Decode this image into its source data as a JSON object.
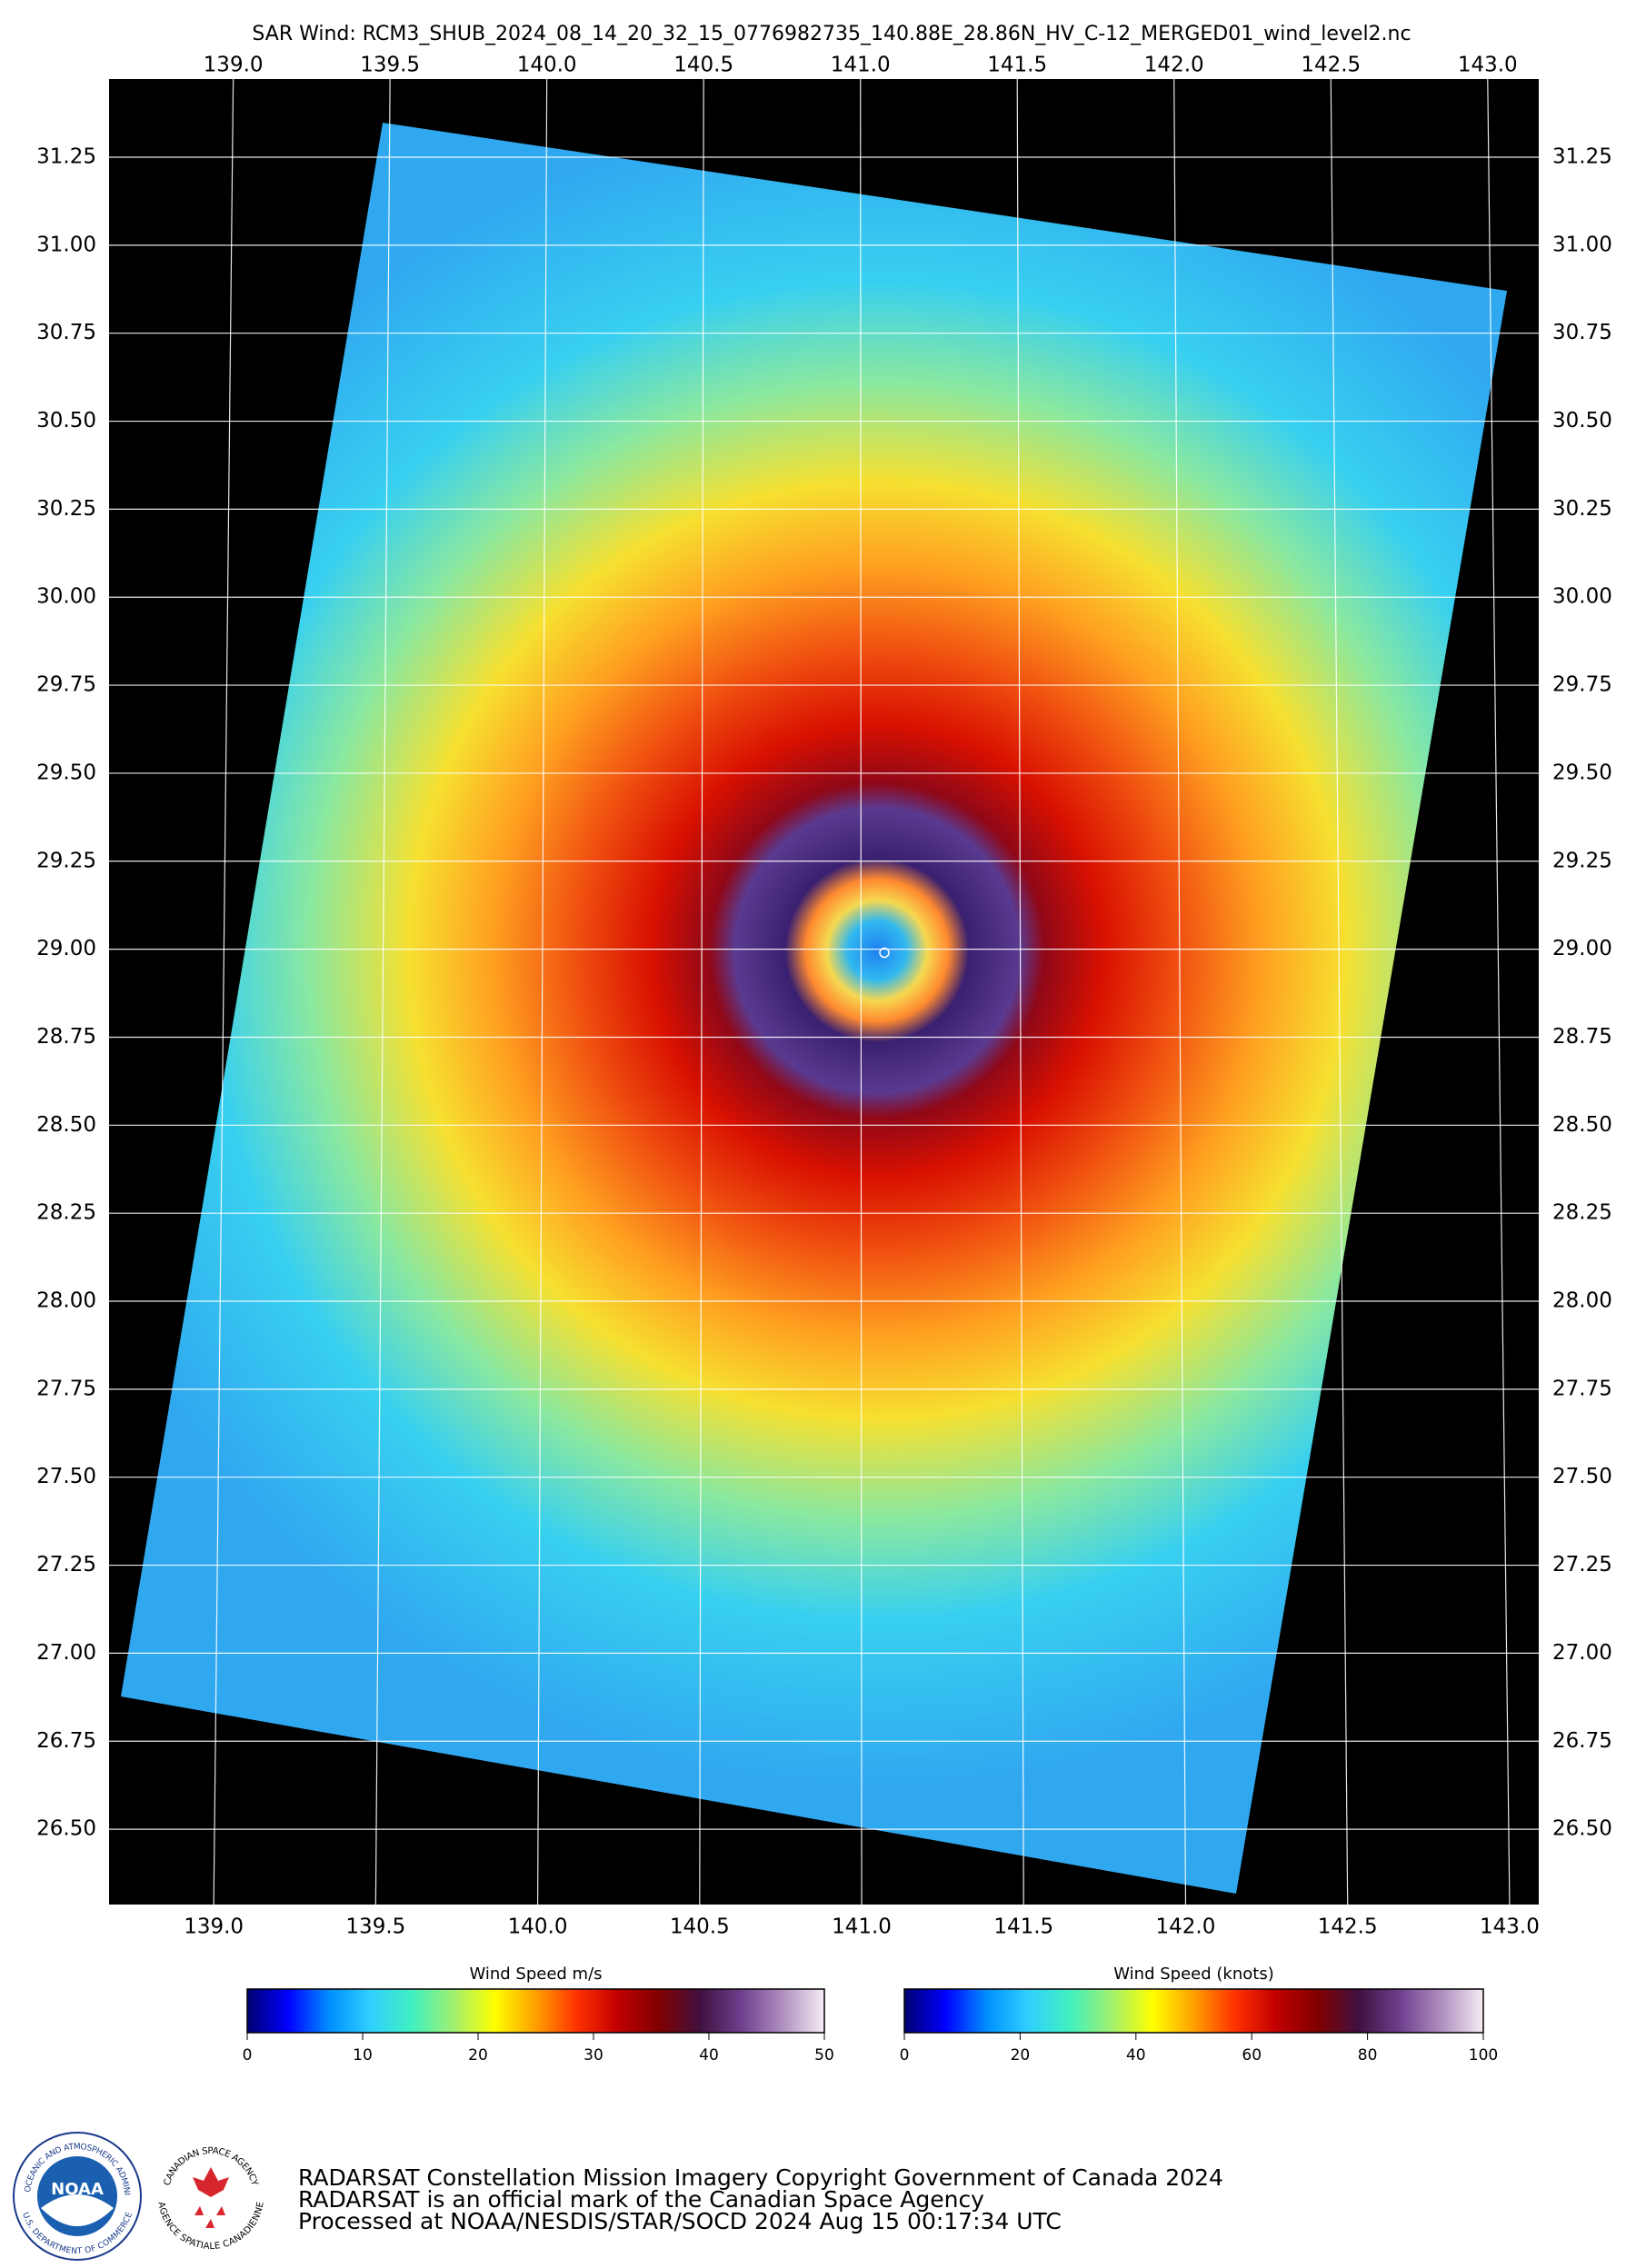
{
  "chart_data": {
    "type": "map",
    "title": "SAR Wind: RCM3_SHUB_2024_08_14_20_32_15_0776982735_140.88E_28.86N_HV_C-12_MERGED01_wind_level2.nc",
    "xlim": [
      138.677,
      143.09
    ],
    "xticks": [
      {
        "value": 139,
        "label": "139.0"
      },
      139.5,
      {
        "value": 140,
        "label": "140.0"
      },
      140.5,
      {
        "value": 141,
        "label": "141.0"
      },
      141.5,
      {
        "value": 142,
        "label": "142.0"
      },
      142.5,
      {
        "value": 143,
        "label": "143.0"
      }
    ],
    "ylim": [
      26.286,
      31.472
    ],
    "yticks": [
      31.25,
      {
        "value": 31,
        "label": "31.00"
      },
      30.75,
      {
        "value": 30.5,
        "label": "30.50"
      },
      30.25,
      {
        "value": 30,
        "label": "30.00"
      },
      29.75,
      {
        "value": 29.5,
        "label": "29.50"
      },
      29.25,
      {
        "value": 29,
        "label": "29.00"
      },
      28.75,
      {
        "value": 28.5,
        "label": "28.50"
      },
      28.25,
      {
        "value": 28,
        "label": "28.00"
      },
      27.75,
      {
        "value": 27.5,
        "label": "27.50"
      },
      27.25,
      {
        "value": 27,
        "label": "27.00"
      },
      26.75,
      {
        "value": 26.5,
        "label": "26.50"
      }
    ],
    "grid": true,
    "eye": {
      "lon": 141.07,
      "lat": 28.99
    },
    "colorbars": [
      {
        "label": "Wind Speed m/s",
        "lim": [
          0,
          50
        ],
        "ticks": [
          0,
          10,
          20,
          30,
          40,
          50
        ]
      },
      {
        "label": "Wind Speed (knots)",
        "lim": [
          0,
          100
        ],
        "ticks": [
          0,
          20,
          40,
          60,
          80,
          100
        ]
      }
    ],
    "colormap": [
      "#000070",
      "#0000ff",
      "#0090ff",
      "#30d0ff",
      "#40f0c0",
      "#a0f070",
      "#ffff00",
      "#ffa000",
      "#ff3000",
      "#c00000",
      "#800000",
      "#401040",
      "#704090",
      "#b090c0",
      "#f4ecf4"
    ]
  },
  "logos": {
    "noaa": {
      "name": "NOAA",
      "ring_top": "NATIONAL OCEANIC AND ATMOSPHERIC ADMINISTRATION",
      "ring_bottom": "U.S. DEPARTMENT OF COMMERCE"
    },
    "csa": {
      "ring_top": "CANADIAN SPACE AGENCY",
      "ring_bottom": "AGENCE SPATIALE CANADIENNE"
    }
  },
  "footer": [
    "RADARSAT Constellation Mission Imagery Copyright Government of Canada 2024",
    "RADARSAT is an official mark of the Canadian Space Agency",
    "Processed at NOAA/NESDIS/STAR/SOCD 2024 Aug 15 00:17:34 UTC"
  ]
}
